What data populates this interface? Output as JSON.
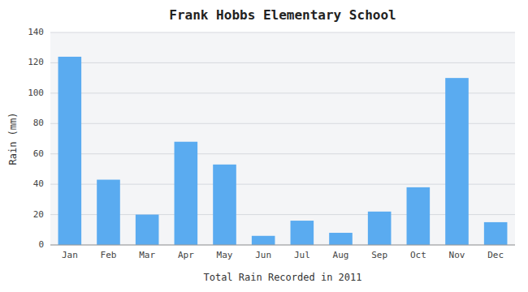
{
  "chart_data": {
    "type": "bar",
    "title": "Frank Hobbs Elementary School",
    "xlabel": "Total Rain Recorded in 2011",
    "ylabel": "Rain (mm)",
    "categories": [
      "Jan",
      "Feb",
      "Mar",
      "Apr",
      "May",
      "Jun",
      "Jul",
      "Aug",
      "Sep",
      "Oct",
      "Nov",
      "Dec"
    ],
    "values": [
      124,
      43,
      20,
      68,
      53,
      6,
      16,
      8,
      22,
      38,
      110,
      15
    ],
    "color": "#5aabf0",
    "ylim": [
      0,
      140
    ],
    "yticks": [
      0,
      20,
      40,
      60,
      80,
      100,
      120,
      140
    ],
    "grid": true
  }
}
